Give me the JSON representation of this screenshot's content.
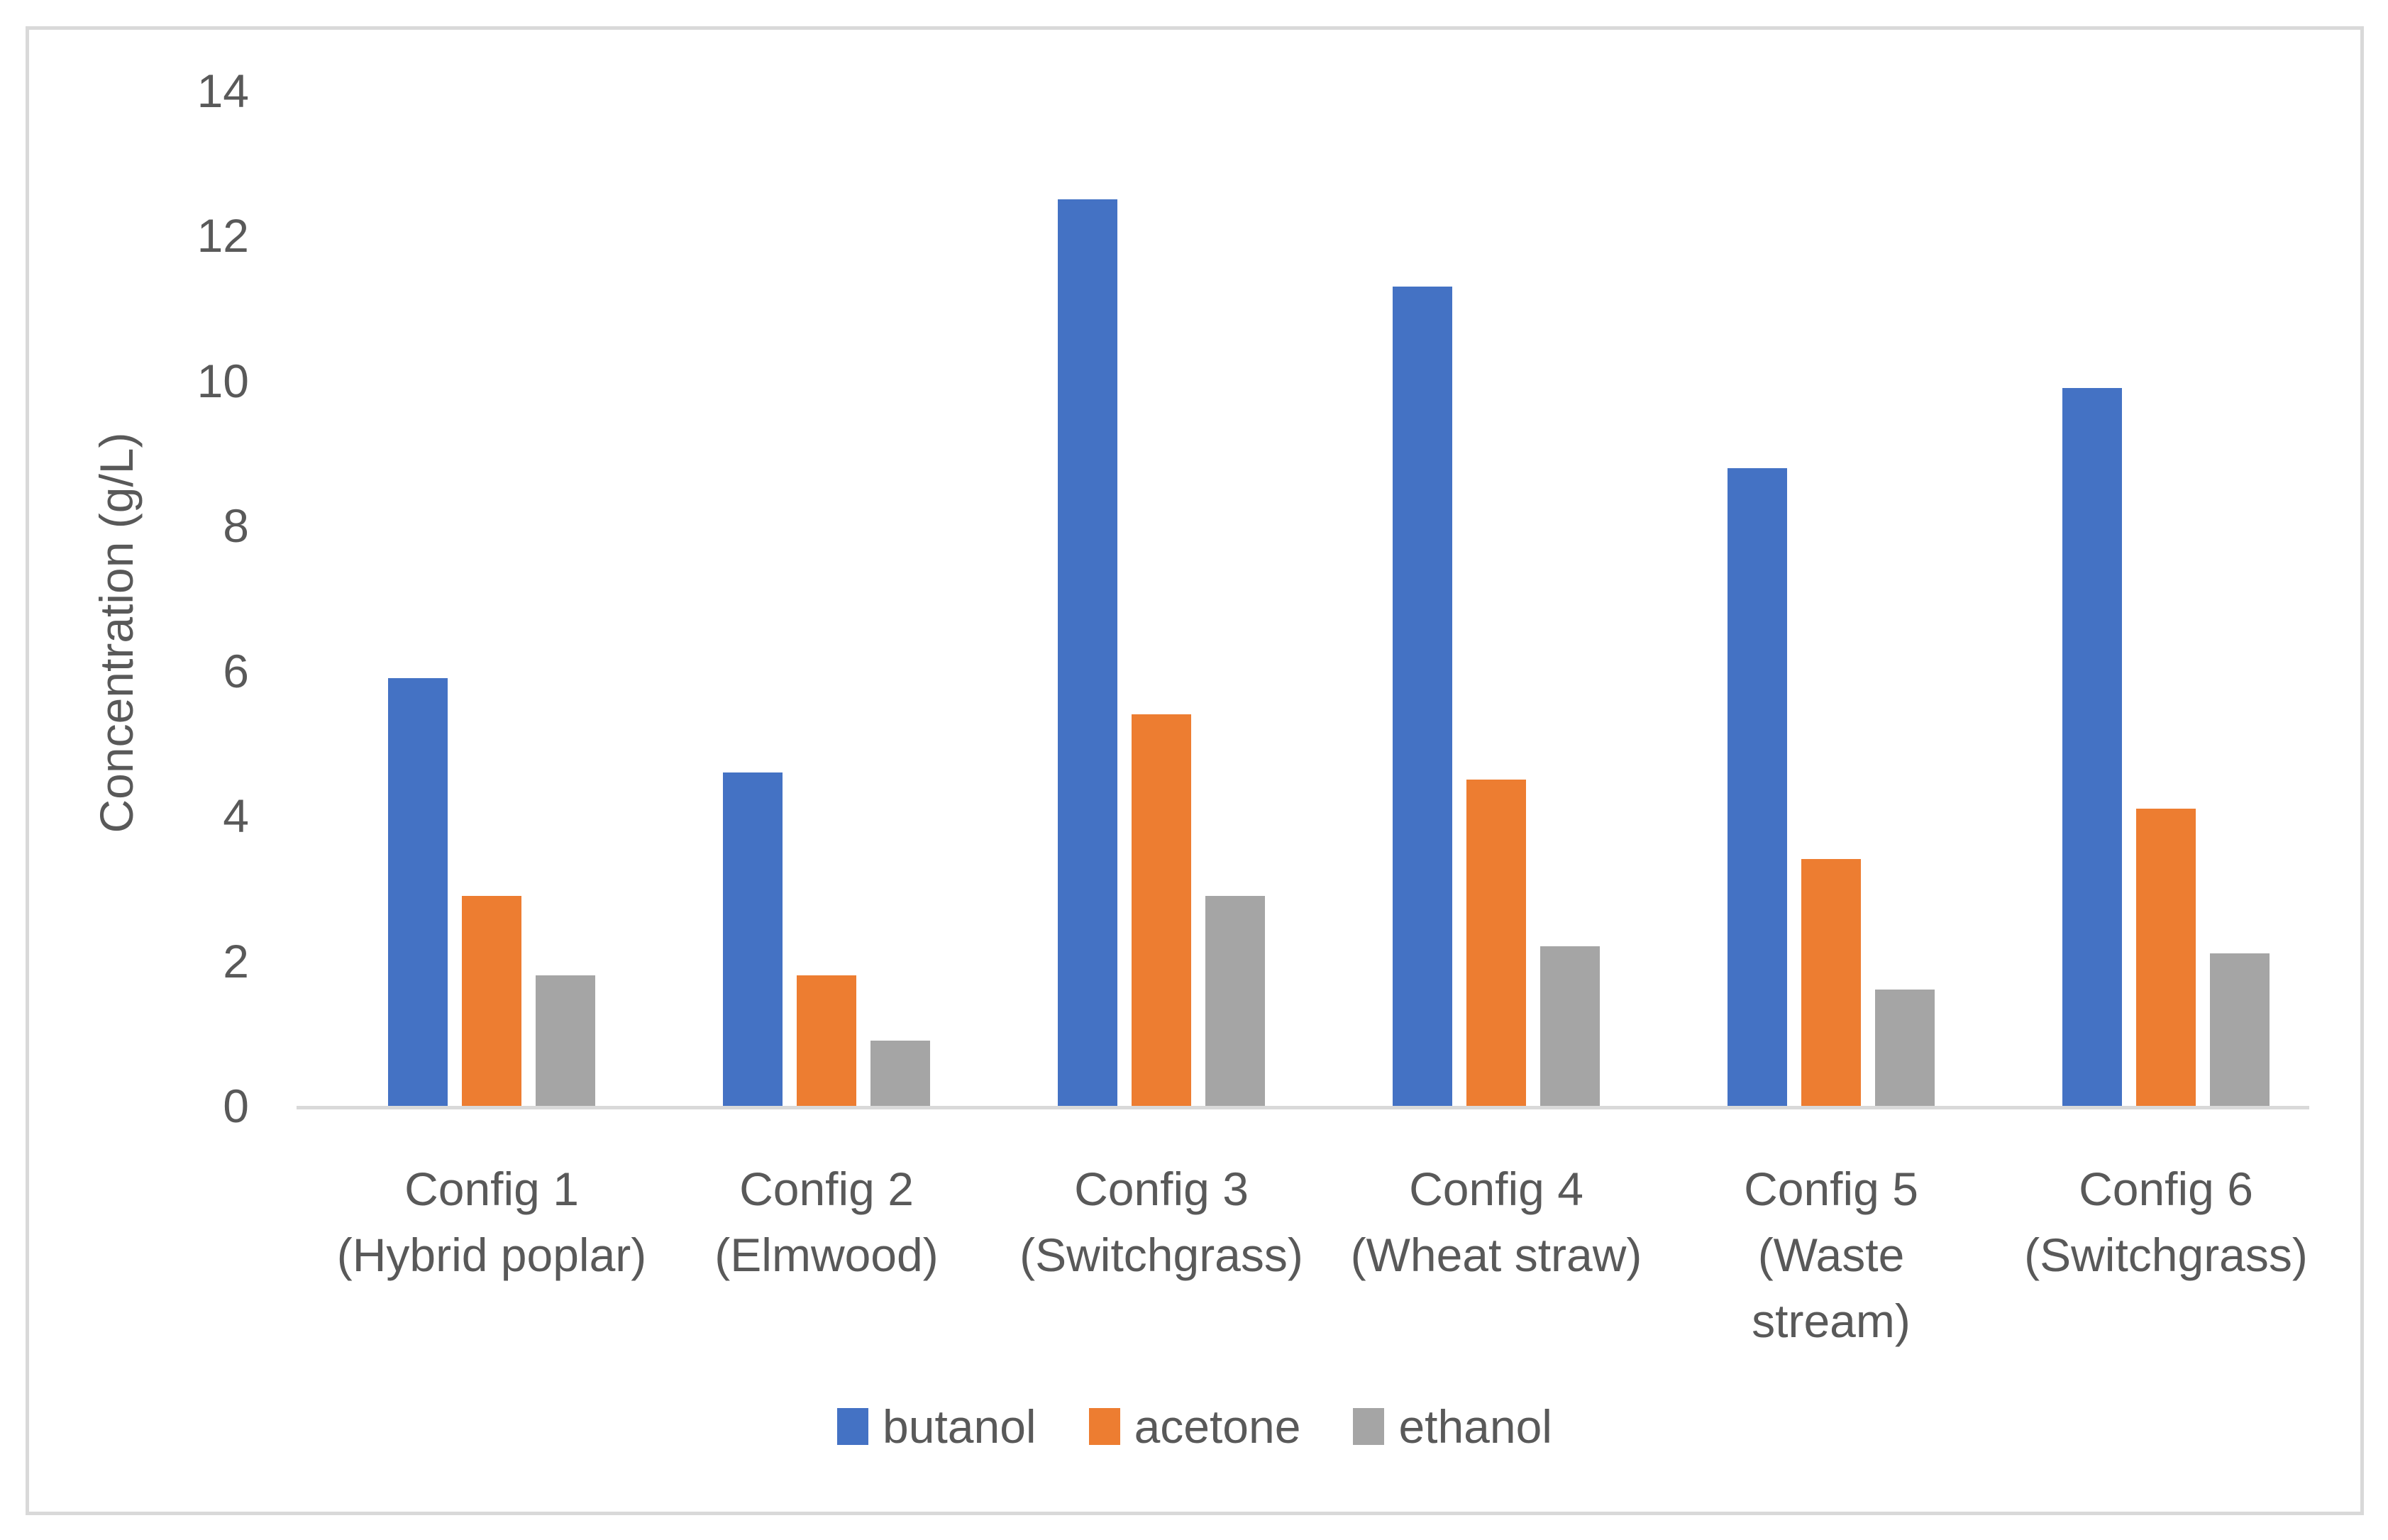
{
  "chart_data": {
    "type": "bar",
    "title": "",
    "xlabel": "",
    "ylabel": "Concentration (g/L)",
    "ylim": [
      0,
      14
    ],
    "yticks": [
      0,
      2,
      4,
      6,
      8,
      10,
      12,
      14
    ],
    "grid": false,
    "legend_position": "bottom",
    "categories": [
      {
        "lines": [
          "Config 1",
          "(Hybrid poplar)"
        ]
      },
      {
        "lines": [
          "Config 2",
          "(Elmwood)"
        ]
      },
      {
        "lines": [
          "Config 3",
          "(Switchgrass)"
        ]
      },
      {
        "lines": [
          "Config 4",
          "(Wheat straw)"
        ]
      },
      {
        "lines": [
          "Config 5",
          "(Waste",
          "stream)"
        ]
      },
      {
        "lines": [
          "Config 6",
          "(Switchgrass)"
        ]
      }
    ],
    "series": [
      {
        "name": "butanol",
        "color": "#4472C4",
        "values": [
          5.9,
          4.6,
          12.5,
          11.3,
          8.8,
          9.9
        ]
      },
      {
        "name": "acetone",
        "color": "#ED7D31",
        "values": [
          2.9,
          1.8,
          5.4,
          4.5,
          3.4,
          4.1
        ]
      },
      {
        "name": "ethanol",
        "color": "#A5A5A5",
        "values": [
          1.8,
          0.9,
          2.9,
          2.2,
          1.6,
          2.1
        ]
      }
    ],
    "colors": {
      "text": "#595959",
      "axis_line": "#D9D9D9",
      "border": "#D9D9D9",
      "background": "#FFFFFF"
    }
  }
}
